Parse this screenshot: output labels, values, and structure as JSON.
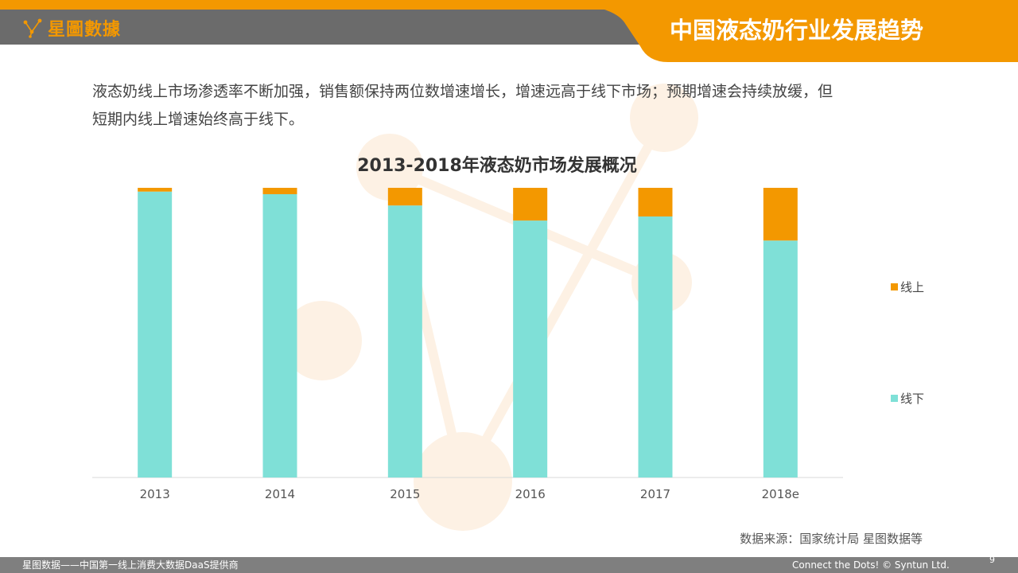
{
  "header": {
    "logo_text": "星圖數據",
    "page_title": "中国液态奶行业发展趋势"
  },
  "intro": {
    "line1": "液态奶线上市场渗透率不断加强，销售额保持两位数增速增长，增速远高于线下市场；预期增速会持续放缓，但",
    "line2": "短期内线上增速始终高于线下。"
  },
  "colors": {
    "accent": "#f39800",
    "online": "#f39800",
    "offline": "#7fe0d7",
    "header_gray": "#6b6b6b",
    "footer_gray": "#7f7f7f"
  },
  "chart_data": {
    "type": "bar",
    "stacked": true,
    "title": "2013-2018年液态奶市场发展概况",
    "categories": [
      "2013",
      "2014",
      "2015",
      "2016",
      "2017",
      "2018e"
    ],
    "series": [
      {
        "name": "线下",
        "values": [
          98.7,
          97.8,
          93.9,
          88.7,
          90.1,
          81.8
        ]
      },
      {
        "name": "线上",
        "values": [
          1.3,
          2.2,
          6.1,
          11.3,
          9.9,
          18.2
        ]
      }
    ],
    "ylim": [
      0,
      100
    ],
    "y_axis_visible": false,
    "grid": false,
    "legend_position": "right"
  },
  "legend": {
    "online": "线上",
    "offline": "线下"
  },
  "source": "数据来源：国家统计局  星图数据等",
  "footer": {
    "left_text": "星图数据——中国第一线上消费大数据DaaS提供商",
    "right_text": "Connect the Dots! © Syntun Ltd.",
    "page_number": "9"
  }
}
